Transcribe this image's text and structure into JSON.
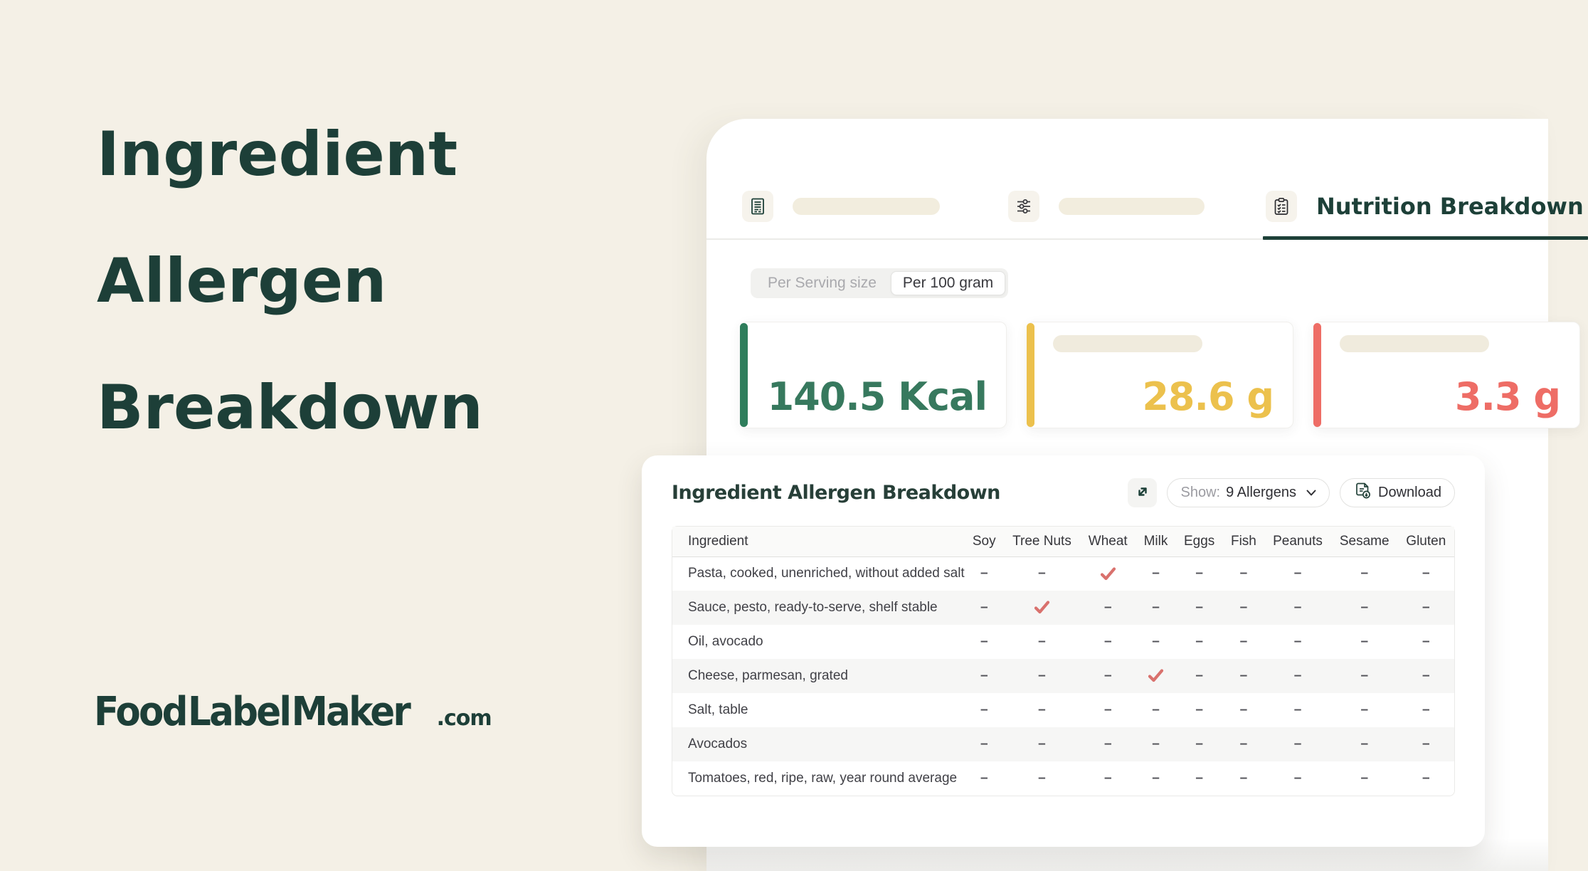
{
  "page": {
    "headline": {
      "line1": "Ingredient",
      "line2": "Allergen",
      "line3": "Breakdown"
    },
    "logo": {
      "name": "Food Label Maker",
      "tld": ".com"
    }
  },
  "nutrition_panel": {
    "tabs": [
      {
        "icon": "document-icon",
        "label": "",
        "active": false
      },
      {
        "icon": "sliders-icon",
        "label": "",
        "active": false
      },
      {
        "icon": "clipboard-checklist-icon",
        "label": "Nutrition Breakdown",
        "active": true
      }
    ],
    "serving_toggle": {
      "options": [
        {
          "label": "Per Serving size",
          "active": false
        },
        {
          "label": "Per 100 gram",
          "active": true
        }
      ]
    },
    "stat_cards": [
      {
        "value": "140.5 Kcal",
        "color": "#37795e",
        "accent": "#2e7d5b",
        "placeholder": false
      },
      {
        "value": "28.6 g",
        "color": "#ecc14d",
        "accent": "#ecc14d",
        "placeholder": true
      },
      {
        "value": "3.3 g",
        "color": "#ee6d66",
        "accent": "#ee6d66",
        "placeholder": true
      }
    ]
  },
  "allergen_breakdown": {
    "title": "Ingredient Allergen Breakdown",
    "show_label": "Show:",
    "show_value": "9 Allergens",
    "download_label": "Download",
    "table": {
      "columns": [
        "Ingredient",
        "Soy",
        "Tree Nuts",
        "Wheat",
        "Milk",
        "Eggs",
        "Fish",
        "Peanuts",
        "Sesame",
        "Gluten"
      ],
      "rows": [
        {
          "ingredient": "Pasta, cooked, unenriched, without added salt",
          "allergens": [
            "Wheat"
          ]
        },
        {
          "ingredient": "Sauce, pesto, ready-to-serve, shelf stable",
          "allergens": [
            "Tree Nuts"
          ]
        },
        {
          "ingredient": "Oil, avocado",
          "allergens": []
        },
        {
          "ingredient": "Cheese, parmesan, grated",
          "allergens": [
            "Milk"
          ]
        },
        {
          "ingredient": "Salt, table",
          "allergens": []
        },
        {
          "ingredient": "Avocados",
          "allergens": []
        },
        {
          "ingredient": "Tomatoes, red, ripe, raw, year round average",
          "allergens": []
        }
      ],
      "empty_marker": "–"
    }
  },
  "colors": {
    "background_cream": "#f4f0e6",
    "brand_teal": "#1d3f38",
    "stat_green": "#37795e",
    "stat_yellow": "#ecc14d",
    "stat_red": "#ee6d66",
    "check_coral": "#d9716d",
    "placeholder_beige": "#f2edde"
  }
}
